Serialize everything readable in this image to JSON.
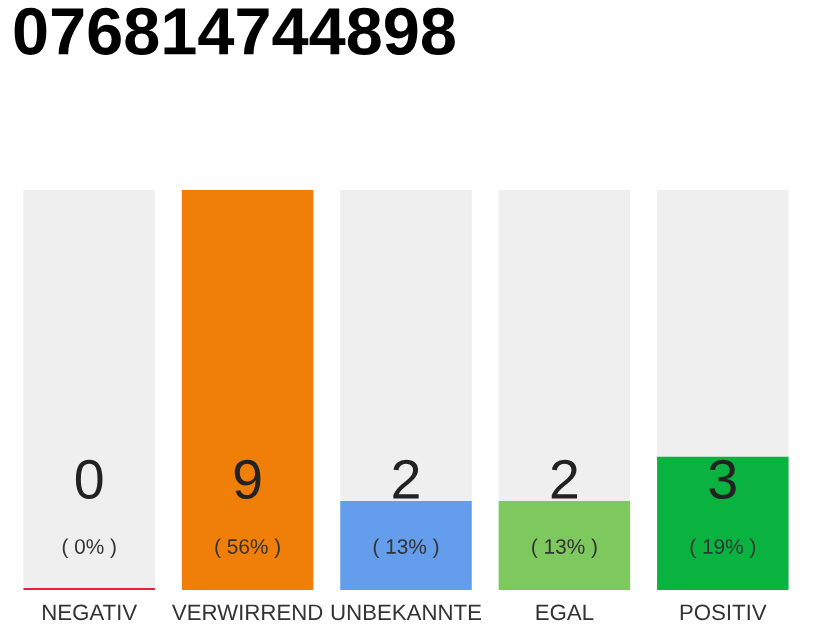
{
  "chart_data": {
    "type": "bar",
    "title": "076814744898",
    "categories": [
      "NEGATIV",
      "VERWIRREND",
      "UNBEKANNTE",
      "EGAL",
      "POSITIV"
    ],
    "values": [
      0,
      9,
      2,
      2,
      3
    ],
    "colors": [
      "#e8203f",
      "#f07f09",
      "#649deb",
      "#7dc95e",
      "#0ab340"
    ],
    "value_labels": [
      "0\n( 0% )",
      "9\n( 56% )",
      "2\n( 13% )",
      "2\n( 13% )",
      "3\n( 19% )"
    ],
    "ylim": [
      0,
      9
    ],
    "grid": false,
    "legend": false
  }
}
